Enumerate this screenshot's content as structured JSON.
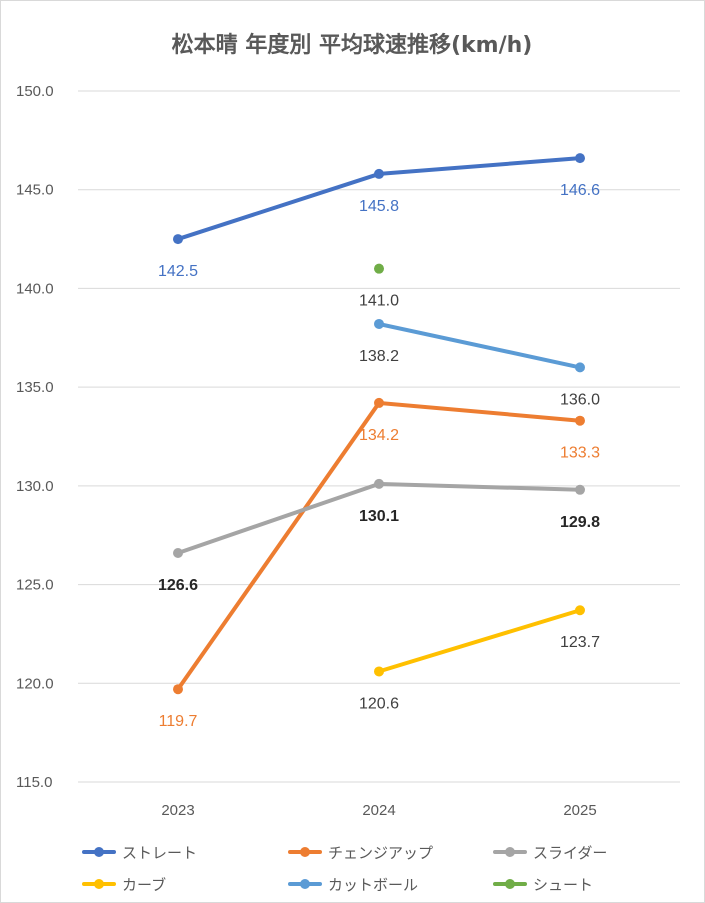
{
  "chart_data": {
    "type": "line",
    "title": "松本晴 年度別 平均球速推移(km/h)",
    "categories": [
      "2023",
      "2024",
      "2025"
    ],
    "ylim": [
      115,
      150
    ],
    "yticks": [
      "115.0",
      "120.0",
      "125.0",
      "130.0",
      "135.0",
      "140.0",
      "145.0",
      "150.0"
    ],
    "grid": true,
    "legend_position": "bottom",
    "series": [
      {
        "name": "ストレート",
        "color": "#4472C4",
        "values": [
          142.5,
          145.8,
          146.6
        ],
        "labels": [
          "142.5",
          "145.8",
          "146.6"
        ],
        "label_color": "#4472C4",
        "label_bold": false
      },
      {
        "name": "チェンジアップ",
        "color": "#ED7D31",
        "values": [
          119.7,
          134.2,
          133.3
        ],
        "labels": [
          "119.7",
          "134.2",
          "133.3"
        ],
        "label_color": "#ED7D31",
        "label_bold": false
      },
      {
        "name": "スライダー",
        "color": "#A5A5A5",
        "values": [
          126.6,
          130.1,
          129.8
        ],
        "labels": [
          "126.6",
          "130.1",
          "129.8"
        ],
        "label_color": "#262626",
        "label_bold": true
      },
      {
        "name": "カーブ",
        "color": "#FFC000",
        "values": [
          null,
          120.6,
          123.7
        ],
        "labels": [
          "",
          "120.6",
          "123.7"
        ],
        "label_color": "#404040",
        "label_bold": false
      },
      {
        "name": "カットボール",
        "color": "#5B9BD5",
        "values": [
          null,
          138.2,
          136.0
        ],
        "labels": [
          "",
          "138.2",
          "136.0"
        ],
        "label_color": "#404040",
        "label_bold": false
      },
      {
        "name": "シュート",
        "color": "#70AD47",
        "values": [
          null,
          141.0,
          null
        ],
        "labels": [
          "",
          "141.0",
          ""
        ],
        "label_color": "#404040",
        "label_bold": false
      }
    ]
  }
}
